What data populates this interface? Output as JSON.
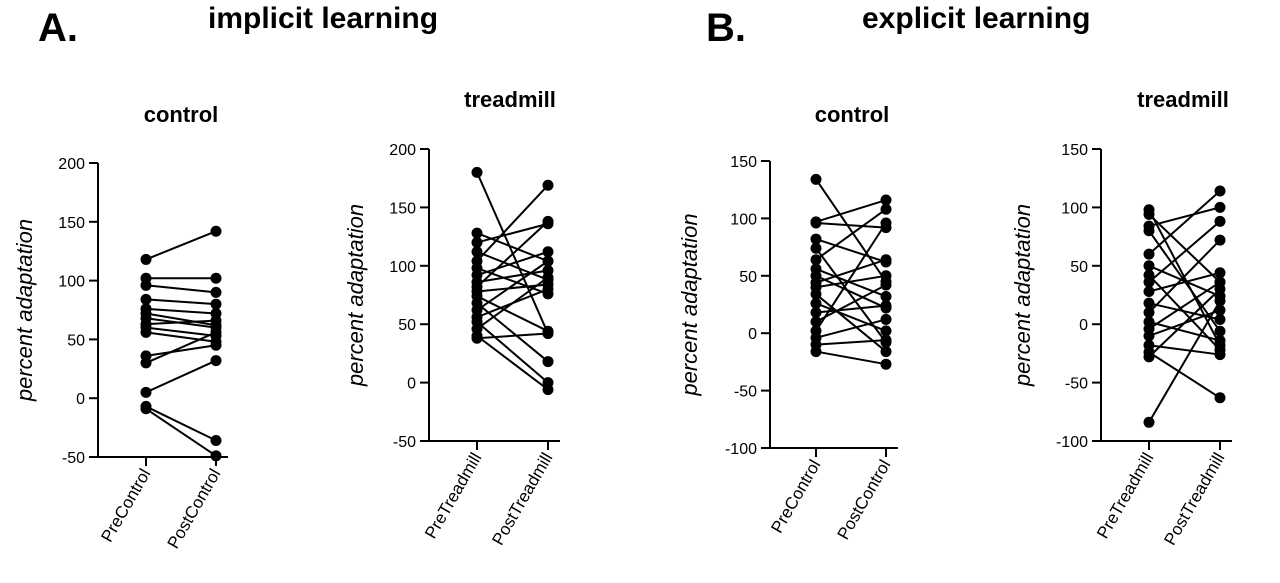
{
  "figure": {
    "panel_a": {
      "letter": "A.",
      "title": "implicit learning"
    },
    "panel_b": {
      "letter": "B.",
      "title": "explicit learning"
    }
  },
  "chart_data": [
    {
      "type": "line",
      "panel": "A.",
      "title": "control",
      "ylabel": "percent adaptation",
      "xlabel": "",
      "categories": [
        "PreControl",
        "PostControl"
      ],
      "ylim": [
        -50,
        200
      ],
      "yticks": [
        -50,
        0,
        50,
        100,
        150,
        200
      ],
      "grid": false,
      "series": [
        {
          "values": [
            118,
            142
          ]
        },
        {
          "values": [
            102,
            102
          ]
        },
        {
          "values": [
            96,
            90
          ]
        },
        {
          "values": [
            84,
            80
          ]
        },
        {
          "values": [
            76,
            72
          ]
        },
        {
          "values": [
            72,
            62
          ]
        },
        {
          "values": [
            68,
            60
          ]
        },
        {
          "values": [
            63,
            66
          ]
        },
        {
          "values": [
            60,
            53
          ]
        },
        {
          "values": [
            56,
            48
          ]
        },
        {
          "values": [
            36,
            45
          ]
        },
        {
          "values": [
            30,
            56
          ]
        },
        {
          "values": [
            5,
            32
          ]
        },
        {
          "values": [
            -7,
            -36
          ]
        },
        {
          "values": [
            -9,
            -49
          ]
        }
      ]
    },
    {
      "type": "line",
      "panel": "A.",
      "title": "treadmill",
      "ylabel": "percent adaptation",
      "xlabel": "",
      "categories": [
        "PreTreadmill",
        "PostTreadmill"
      ],
      "ylim": [
        -50,
        200
      ],
      "yticks": [
        -50,
        0,
        50,
        100,
        150,
        200
      ],
      "grid": false,
      "series": [
        {
          "values": [
            180,
            42
          ]
        },
        {
          "values": [
            128,
            104
          ]
        },
        {
          "values": [
            120,
            136
          ]
        },
        {
          "values": [
            112,
            88
          ]
        },
        {
          "values": [
            104,
            169
          ]
        },
        {
          "values": [
            98,
            76
          ]
        },
        {
          "values": [
            92,
            112
          ]
        },
        {
          "values": [
            86,
            96
          ]
        },
        {
          "values": [
            82,
            138
          ]
        },
        {
          "values": [
            78,
            84
          ]
        },
        {
          "values": [
            74,
            44
          ]
        },
        {
          "values": [
            68,
            18
          ]
        },
        {
          "values": [
            62,
            104
          ]
        },
        {
          "values": [
            56,
            80
          ]
        },
        {
          "values": [
            52,
            0
          ]
        },
        {
          "values": [
            46,
            90
          ]
        },
        {
          "values": [
            40,
            -6
          ]
        },
        {
          "values": [
            38,
            42
          ]
        }
      ]
    },
    {
      "type": "line",
      "panel": "B.",
      "title": "control",
      "ylabel": "percent adaptation",
      "xlabel": "",
      "categories": [
        "PreControl",
        "PostControl"
      ],
      "ylim": [
        -100,
        150
      ],
      "yticks": [
        -100,
        -50,
        0,
        50,
        100,
        150
      ],
      "grid": false,
      "series": [
        {
          "values": [
            134,
            45
          ]
        },
        {
          "values": [
            97,
            116
          ]
        },
        {
          "values": [
            96,
            92
          ]
        },
        {
          "values": [
            82,
            62
          ]
        },
        {
          "values": [
            74,
            -8
          ]
        },
        {
          "values": [
            64,
            108
          ]
        },
        {
          "values": [
            56,
            32
          ]
        },
        {
          "values": [
            50,
            22
          ]
        },
        {
          "values": [
            44,
            64
          ]
        },
        {
          "values": [
            40,
            50
          ]
        },
        {
          "values": [
            34,
            -16
          ]
        },
        {
          "values": [
            26,
            2
          ]
        },
        {
          "values": [
            18,
            24
          ]
        },
        {
          "values": [
            10,
            42
          ]
        },
        {
          "values": [
            2,
            96
          ]
        },
        {
          "values": [
            -4,
            12
          ]
        },
        {
          "values": [
            -10,
            -6
          ]
        },
        {
          "values": [
            -16,
            -27
          ]
        }
      ]
    },
    {
      "type": "line",
      "panel": "B.",
      "title": "treadmill",
      "ylabel": "percent adaptation",
      "xlabel": "",
      "categories": [
        "PreTreadmill",
        "PostTreadmill"
      ],
      "ylim": [
        -100,
        150
      ],
      "yticks": [
        -100,
        -50,
        0,
        50,
        100,
        150
      ],
      "grid": false,
      "series": [
        {
          "values": [
            98,
            -18
          ]
        },
        {
          "values": [
            94,
            36
          ]
        },
        {
          "values": [
            84,
            100
          ]
        },
        {
          "values": [
            80,
            -6
          ]
        },
        {
          "values": [
            60,
            114
          ]
        },
        {
          "values": [
            50,
            24
          ]
        },
        {
          "values": [
            42,
            -22
          ]
        },
        {
          "values": [
            36,
            88
          ]
        },
        {
          "values": [
            28,
            44
          ]
        },
        {
          "values": [
            18,
            4
          ]
        },
        {
          "values": [
            10,
            72
          ]
        },
        {
          "values": [
            2,
            -14
          ]
        },
        {
          "values": [
            -4,
            36
          ]
        },
        {
          "values": [
            -10,
            12
          ]
        },
        {
          "values": [
            -18,
            -26
          ]
        },
        {
          "values": [
            -24,
            -63
          ]
        },
        {
          "values": [
            -28,
            30
          ]
        },
        {
          "values": [
            -84,
            20
          ]
        }
      ]
    }
  ]
}
